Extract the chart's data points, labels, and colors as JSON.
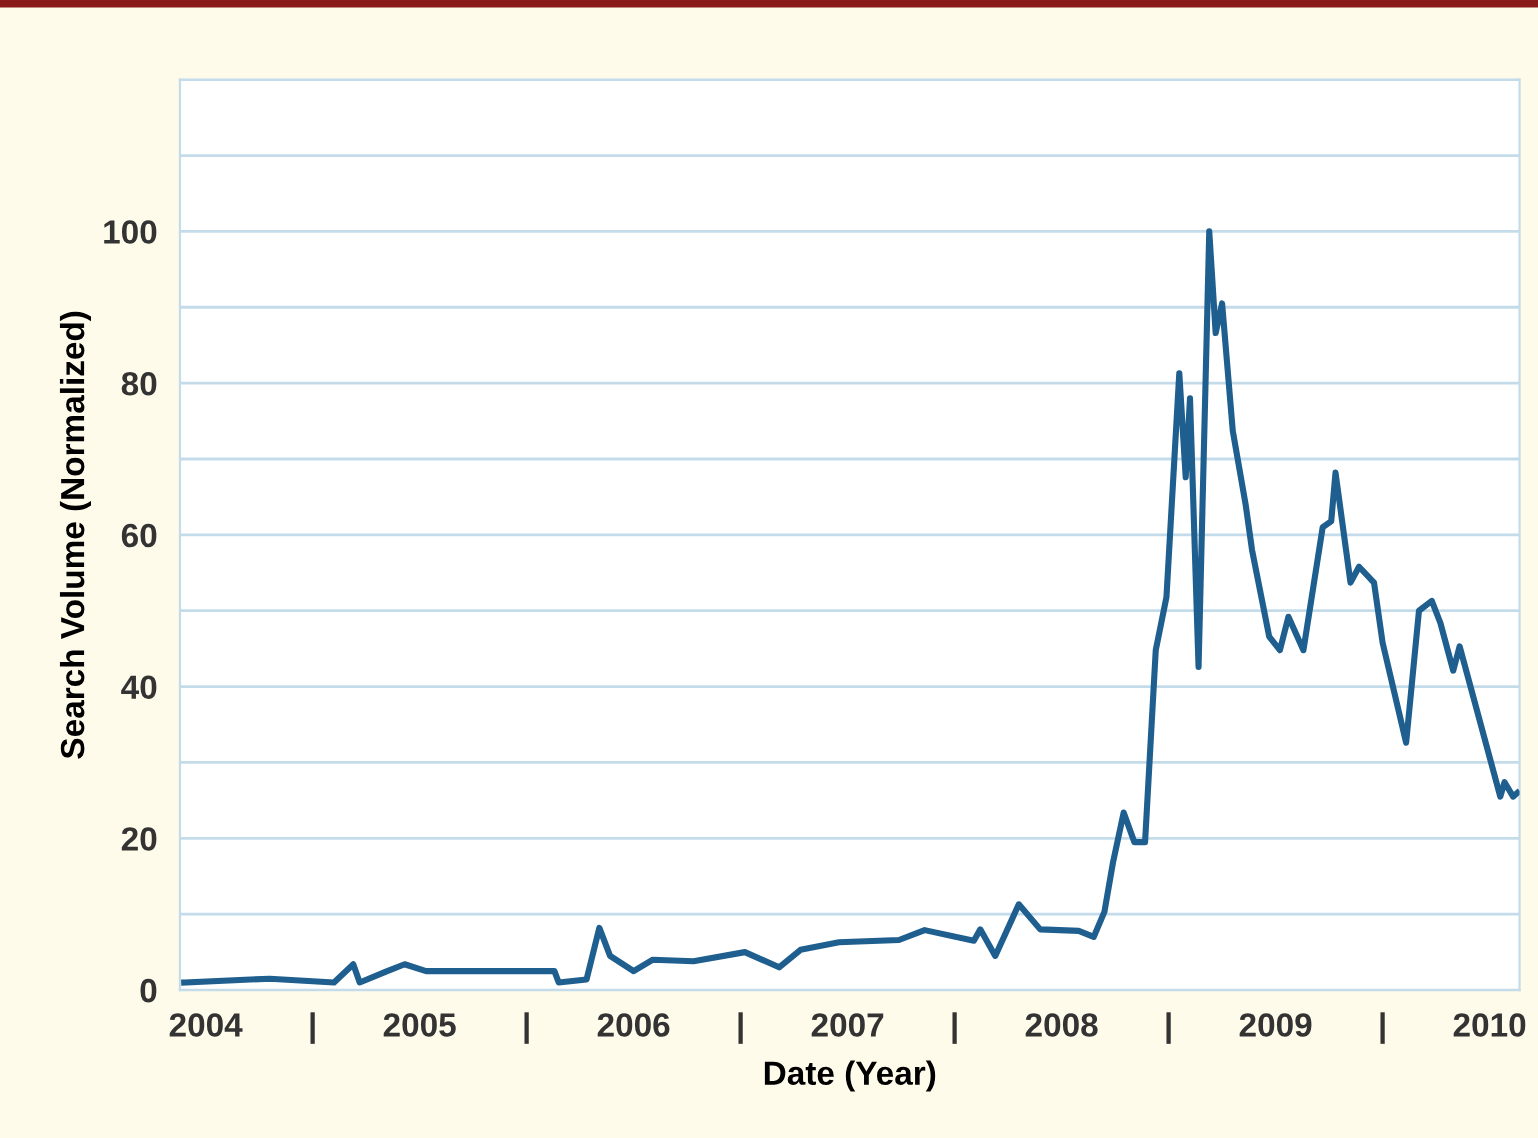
{
  "chart_data": {
    "type": "line",
    "xlabel": "Date (Year)",
    "ylabel": "Search Volume (Normalized)",
    "x": [
      2003.9,
      2004.3,
      2004.6,
      2004.69,
      2004.72,
      2004.84,
      2004.93,
      2005.03,
      2005.63,
      2005.65,
      2005.78,
      2005.84,
      2005.89,
      2006.0,
      2006.09,
      2006.28,
      2006.52,
      2006.68,
      2006.78,
      2006.96,
      2007.24,
      2007.36,
      2007.59,
      2007.62,
      2007.69,
      2007.8,
      2007.9,
      2008.08,
      2008.15,
      2008.2,
      2008.24,
      2008.29,
      2008.34,
      2008.39,
      2008.44,
      2008.49,
      2008.55,
      2008.58,
      2008.6,
      2008.64,
      2008.69,
      2008.72,
      2008.75,
      2008.8,
      2008.86,
      2008.89,
      2008.97,
      2009.02,
      2009.06,
      2009.13,
      2009.22,
      2009.26,
      2009.28,
      2009.35,
      2009.39,
      2009.46,
      2009.5,
      2009.61,
      2009.67,
      2009.73,
      2009.77,
      2009.83,
      2009.86,
      2010.05,
      2010.07,
      2010.11,
      2010.13
    ],
    "series": [
      {
        "color": "#1f5f8f",
        "values": [
          1,
          1.5,
          1,
          3.4,
          1,
          2.4,
          3.4,
          2.5,
          2.5,
          1,
          1.4,
          8.2,
          4.5,
          2.5,
          4,
          3.8,
          5,
          3,
          5.3,
          6.3,
          6.6,
          7.9,
          6.5,
          8,
          4.5,
          11.3,
          8,
          7.8,
          7,
          10.3,
          16.8,
          23.4,
          19.5,
          19.5,
          44.8,
          51.8,
          81.3,
          67.6,
          78,
          42.6,
          100,
          86.6,
          90.5,
          73.7,
          64,
          58,
          46.6,
          44.8,
          49.2,
          44.8,
          61,
          61.8,
          68.2,
          53.7,
          55.8,
          53.7,
          45.8,
          32.6,
          50,
          51.3,
          48.4,
          42.1,
          45.3,
          25.5,
          27.4,
          25.5,
          26
        ]
      }
    ],
    "xlim": [
      2003.88,
      2010.14
    ],
    "xticks": [
      {
        "value": 2004,
        "label": "2004"
      },
      {
        "value": 2004.5,
        "label": "|"
      },
      {
        "value": 2005,
        "label": "2005"
      },
      {
        "value": 2005.5,
        "label": "|"
      },
      {
        "value": 2006,
        "label": "2006"
      },
      {
        "value": 2006.5,
        "label": "|"
      },
      {
        "value": 2007,
        "label": "2007"
      },
      {
        "value": 2007.5,
        "label": "|"
      },
      {
        "value": 2008,
        "label": "2008"
      },
      {
        "value": 2008.5,
        "label": "|"
      },
      {
        "value": 2009,
        "label": "2009"
      },
      {
        "value": 2009.5,
        "label": "|"
      },
      {
        "value": 2010,
        "label": "2010"
      }
    ],
    "ylim": [
      0,
      120
    ],
    "yticks": [
      0,
      {
        "value": 10,
        "label": null
      },
      20,
      {
        "value": 30,
        "label": null
      },
      40,
      {
        "value": 50,
        "label": null
      },
      60,
      {
        "value": 70,
        "label": null
      },
      80,
      {
        "value": 90,
        "label": null
      },
      100,
      {
        "value": 110,
        "label": null
      },
      {
        "value": 120,
        "label": null
      }
    ],
    "grid": "y",
    "marker": "none",
    "line_style": "solid"
  }
}
